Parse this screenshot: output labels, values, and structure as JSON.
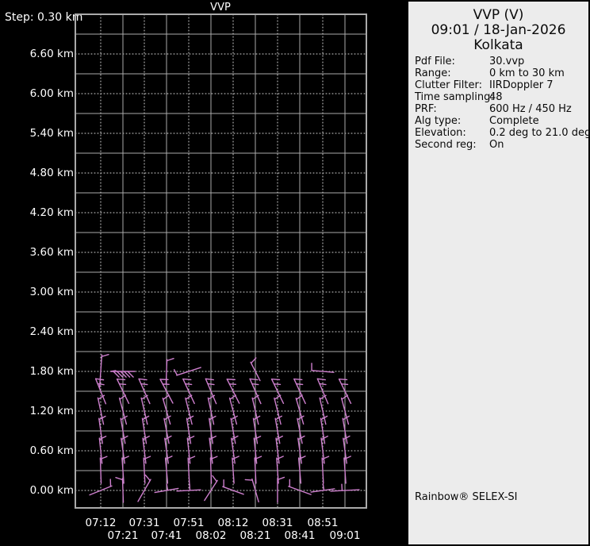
{
  "colors": {
    "background": "#000000",
    "panel_background": "#ececec",
    "axis_text": "#ffffff",
    "panel_text": "#0a0a0a",
    "grid_solid": "#aaaaaa",
    "grid_dotted": "#d8d8d8",
    "frame": "#aaaaaa",
    "barb": "#cd7fcd"
  },
  "chart": {
    "step_label": "Step: 0.30 km",
    "title": "VVP",
    "y_labels": [
      "6.60 km",
      "6.00 km",
      "5.40 km",
      "4.80 km",
      "4.20 km",
      "3.60 km",
      "3.00 km",
      "2.40 km",
      "1.80 km",
      "1.20 km",
      "0.60 km",
      "0.00 km"
    ],
    "x_labels_row1": [
      "07:12",
      "07:31",
      "07:51",
      "08:12",
      "08:31",
      "08:51"
    ],
    "x_labels_row2": [
      "07:21",
      "07:41",
      "08:02",
      "08:21",
      "08:41",
      "09:01"
    ]
  },
  "chart_data": {
    "type": "wind-barb-time-height",
    "title": "VVP",
    "x_times": [
      "07:12",
      "07:21",
      "07:31",
      "07:41",
      "07:51",
      "08:02",
      "08:12",
      "08:21",
      "08:31",
      "08:41",
      "08:51",
      "09:01"
    ],
    "y_axis_km": [
      0.0,
      0.6,
      1.2,
      1.8,
      2.4,
      3.0,
      3.6,
      4.2,
      4.8,
      5.4,
      6.0,
      6.6
    ],
    "step_km": 0.3,
    "ylim_km": [
      0.0,
      7.2
    ],
    "grid": "on",
    "barb_levels_km": [
      0.0,
      0.3,
      0.6,
      0.9,
      1.2,
      1.5,
      1.8
    ],
    "barbs": [
      [
        0,
        1.8,
        4,
        "h",
        42
      ],
      [
        1,
        1.8,
        -90,
        "m",
        30
      ],
      [
        3,
        1.8,
        2,
        "h",
        30
      ],
      [
        4,
        1.8,
        72,
        "hb",
        32
      ],
      [
        7,
        1.8,
        -27,
        "h",
        26
      ],
      [
        10,
        1.8,
        -85,
        "hu",
        28
      ],
      [
        0,
        1.5,
        -22,
        "v",
        34
      ],
      [
        1,
        1.5,
        -26,
        "v",
        34
      ],
      [
        2,
        1.5,
        -24,
        "v",
        34
      ],
      [
        3,
        1.5,
        -28,
        "v",
        34
      ],
      [
        4,
        1.5,
        -25,
        "v",
        34
      ],
      [
        5,
        1.5,
        -23,
        "v",
        34
      ],
      [
        6,
        1.5,
        -27,
        "v",
        34
      ],
      [
        7,
        1.5,
        -24,
        "v",
        34
      ],
      [
        8,
        1.5,
        -26,
        "v",
        34
      ],
      [
        9,
        1.5,
        -25,
        "v",
        34
      ],
      [
        10,
        1.5,
        -23,
        "v",
        34
      ],
      [
        11,
        1.5,
        -26,
        "v",
        34
      ],
      [
        0,
        1.2,
        -12,
        "h",
        34
      ],
      [
        1,
        1.2,
        -15,
        "h",
        34
      ],
      [
        2,
        1.2,
        -13,
        "h",
        34
      ],
      [
        3,
        1.2,
        -16,
        "h",
        34
      ],
      [
        4,
        1.2,
        -14,
        "h",
        34
      ],
      [
        5,
        1.2,
        -12,
        "h",
        34
      ],
      [
        6,
        1.2,
        -15,
        "h",
        34
      ],
      [
        7,
        1.2,
        -13,
        "h",
        34
      ],
      [
        8,
        1.2,
        -14,
        "h",
        34
      ],
      [
        9,
        1.2,
        -16,
        "h",
        34
      ],
      [
        10,
        1.2,
        -13,
        "h",
        34
      ],
      [
        11,
        1.2,
        -15,
        "h",
        34
      ],
      [
        0,
        0.9,
        -8,
        "h",
        32
      ],
      [
        1,
        0.9,
        -10,
        "h",
        32
      ],
      [
        2,
        0.9,
        -9,
        "h",
        32
      ],
      [
        3,
        0.9,
        -11,
        "h",
        32
      ],
      [
        4,
        0.9,
        -9,
        "h",
        32
      ],
      [
        5,
        0.9,
        -8,
        "h",
        32
      ],
      [
        6,
        0.9,
        -10,
        "h",
        32
      ],
      [
        7,
        0.9,
        -9,
        "h",
        32
      ],
      [
        8,
        0.9,
        -10,
        "h",
        32
      ],
      [
        9,
        0.9,
        -11,
        "h",
        32
      ],
      [
        10,
        0.9,
        -9,
        "h",
        32
      ],
      [
        11,
        0.9,
        -10,
        "h",
        32
      ],
      [
        0,
        0.6,
        -6,
        "h",
        32
      ],
      [
        1,
        0.6,
        -8,
        "h",
        32
      ],
      [
        2,
        0.6,
        -7,
        "h",
        32
      ],
      [
        3,
        0.6,
        -8,
        "h",
        32
      ],
      [
        4,
        0.6,
        -6,
        "h",
        32
      ],
      [
        5,
        0.6,
        -7,
        "h",
        32
      ],
      [
        6,
        0.6,
        -8,
        "h",
        32
      ],
      [
        7,
        0.6,
        -6,
        "h",
        32
      ],
      [
        8,
        0.6,
        -7,
        "h",
        32
      ],
      [
        9,
        0.6,
        -8,
        "h",
        32
      ],
      [
        10,
        0.6,
        -7,
        "h",
        32
      ],
      [
        11,
        0.6,
        -8,
        "h",
        32
      ],
      [
        0,
        0.3,
        -2,
        "h",
        32
      ],
      [
        1,
        0.3,
        -4,
        "h",
        32
      ],
      [
        2,
        0.3,
        -3,
        "h",
        32
      ],
      [
        3,
        0.3,
        -5,
        "h",
        32
      ],
      [
        4,
        0.3,
        -3,
        "h",
        32
      ],
      [
        5,
        0.3,
        -2,
        "h",
        32
      ],
      [
        6,
        0.3,
        -4,
        "h",
        32
      ],
      [
        7,
        0.3,
        -3,
        "h",
        32
      ],
      [
        8,
        0.3,
        -4,
        "h",
        32
      ],
      [
        9,
        0.3,
        -5,
        "h",
        32
      ],
      [
        10,
        0.3,
        -3,
        "h",
        32
      ],
      [
        11,
        0.3,
        -4,
        "h",
        32
      ],
      [
        0,
        0.0,
        68,
        "hl",
        30
      ],
      [
        1,
        0.0,
        -2,
        "hl",
        30
      ],
      [
        2,
        0.0,
        30,
        "hl",
        32
      ],
      [
        3,
        0.0,
        80,
        "hm",
        30
      ],
      [
        4,
        0.0,
        87,
        "hm",
        30
      ],
      [
        5,
        0.0,
        33,
        "hl",
        30
      ],
      [
        6,
        0.0,
        -70,
        "h",
        28
      ],
      [
        7,
        0.0,
        -16,
        "hl",
        30
      ],
      [
        8,
        0.0,
        0,
        "h",
        30
      ],
      [
        9,
        0.0,
        -70,
        "h",
        30
      ],
      [
        10,
        0.0,
        82,
        "hm",
        30
      ],
      [
        11,
        0.0,
        87,
        "hum",
        36
      ]
    ]
  },
  "panel": {
    "title": "VVP (V)",
    "datetime": "09:01 / 18-Jan-2026",
    "site": "Kolkata",
    "details": [
      {
        "label": "Pdf File:",
        "value": "30.vvp"
      },
      {
        "label": "Range:",
        "value": "0 km to 30 km"
      },
      {
        "label": "Clutter Filter:",
        "value": "IIRDoppler 7"
      },
      {
        "label": "Time sampling:",
        "value": "48"
      },
      {
        "label": "PRF:",
        "value": "600 Hz / 450 Hz"
      },
      {
        "label": "Alg type:",
        "value": "Complete"
      },
      {
        "label": "Elevation:",
        "value": "0.2 deg to 21.0 deg"
      },
      {
        "label": "Second reg:",
        "value": "On"
      }
    ],
    "footer": "Rainbow® SELEX-SI"
  }
}
